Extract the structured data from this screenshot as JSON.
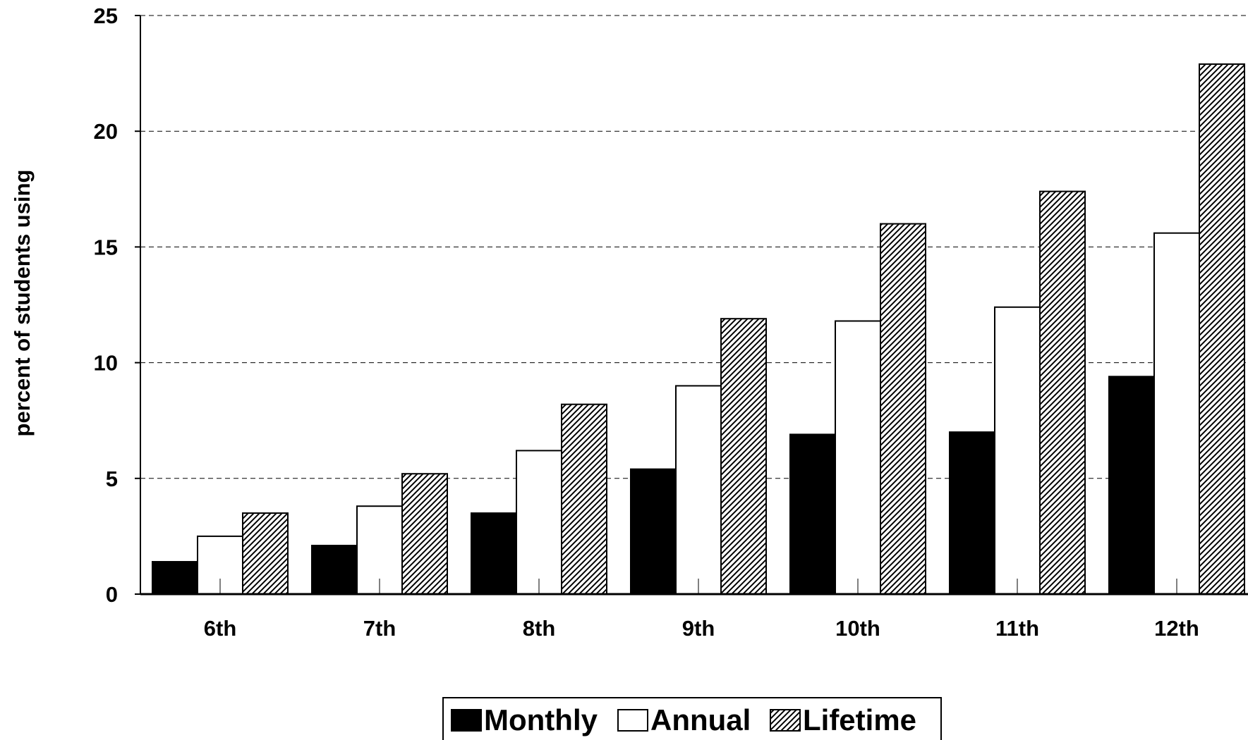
{
  "chart_data": {
    "type": "bar",
    "title": "",
    "xlabel": "",
    "ylabel": "percent of students using",
    "ylim": [
      0,
      25
    ],
    "yticks": [
      0,
      5,
      10,
      15,
      20,
      25
    ],
    "grid": "horizontal dashed",
    "legend_position": "bottom-center",
    "categories": [
      "6th",
      "7th",
      "8th",
      "9th",
      "10th",
      "11th",
      "12th"
    ],
    "series": [
      {
        "name": "Monthly",
        "style": "solid-black",
        "values": [
          1.4,
          2.1,
          3.5,
          5.4,
          6.9,
          7.0,
          9.4
        ]
      },
      {
        "name": "Annual",
        "style": "white",
        "values": [
          2.5,
          3.8,
          6.2,
          9.0,
          11.8,
          12.4,
          15.6
        ]
      },
      {
        "name": "Lifetime",
        "style": "diagonal-hatch",
        "values": [
          3.5,
          5.2,
          8.2,
          11.9,
          16.0,
          17.4,
          22.9
        ]
      }
    ]
  },
  "colors": {
    "monthly": "#000000",
    "annual": "#ffffff",
    "lifetime_hatch": "#000000",
    "lifetime_bg": "#ffffff",
    "grid": "#000000",
    "axis": "#000000"
  }
}
